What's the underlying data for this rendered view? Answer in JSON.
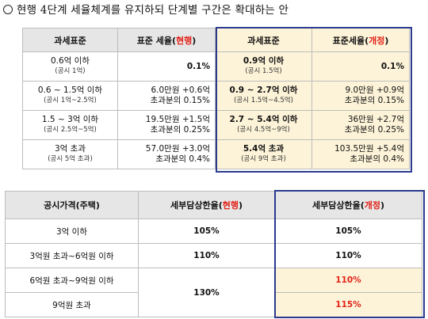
{
  "title": {
    "mark": "○",
    "text": "현행 4단계 세율체계를 유지하되 단계별 구간은 확대하는 안"
  },
  "table1": {
    "headers": {
      "base_current": "과세표준",
      "rate_current_prefix": "표준 세율(",
      "rate_current_tag": "현행",
      "rate_current_suffix": ")",
      "base_new": "과세표준",
      "rate_new_prefix": "표준세율(",
      "rate_new_tag": "개정",
      "rate_new_suffix": ")"
    },
    "rows": [
      {
        "base_cur": "0.6억 이하",
        "base_cur_sub": "(공시 1억)",
        "rate_cur_1": "0.1%",
        "rate_cur_2": "",
        "base_new": "0.9억 이하",
        "base_new_sub": "(공시 1.5억)",
        "rate_new_1": "0.1%",
        "rate_new_2": ""
      },
      {
        "base_cur": "0.6 ~ 1.5억 이하",
        "base_cur_sub": "(공시 1억~2.5억)",
        "rate_cur_1": "6.0만원 +0.6억",
        "rate_cur_2": "초과분의 0.15%",
        "base_new": "0.9 ~ 2.7억 이하",
        "base_new_sub": "(공시 1.5억~4.5억)",
        "rate_new_1": "9.0만원 +0.9억",
        "rate_new_2": "초과분의 0.15%"
      },
      {
        "base_cur": "1.5 ~ 3억 이하",
        "base_cur_sub": "(공시 2.5억~5억)",
        "rate_cur_1": "19.5만원 +1.5억",
        "rate_cur_2": "초과분의 0.25%",
        "base_new": "2.7 ~ 5.4억 이하",
        "base_new_sub": "(공시 4.5억~9억)",
        "rate_new_1": "36만원 +2.7억",
        "rate_new_2": "초과분의 0.25%"
      },
      {
        "base_cur": "3억 초과",
        "base_cur_sub": "(공시 5억 초과)",
        "rate_cur_1": "57.0만원 +3.0억",
        "rate_cur_2": "초과분의 0.4%",
        "base_new": "5.4억 초과",
        "base_new_sub": "(공시 9억 초과)",
        "rate_new_1": "103.5만원 +5.4억",
        "rate_new_2": "초과분의 0.4%"
      }
    ]
  },
  "table2": {
    "headers": {
      "price": "공시가격(주택)",
      "cur_prefix": "세부담상한율(",
      "cur_tag": "현행",
      "cur_suffix": ")",
      "new_prefix": "세부담상한율(",
      "new_tag": "개정",
      "new_suffix": ")"
    },
    "rows": [
      {
        "price": "3억 이하",
        "cur": "105%",
        "new": "105%"
      },
      {
        "price": "3억원 초과~6억원 이하",
        "cur": "110%",
        "new": "110%"
      },
      {
        "price": "6억원 초과~9억원 이하",
        "cur": "130%",
        "new": "110%"
      },
      {
        "price": "9억원 초과",
        "cur": "",
        "new": "115%"
      }
    ]
  }
}
